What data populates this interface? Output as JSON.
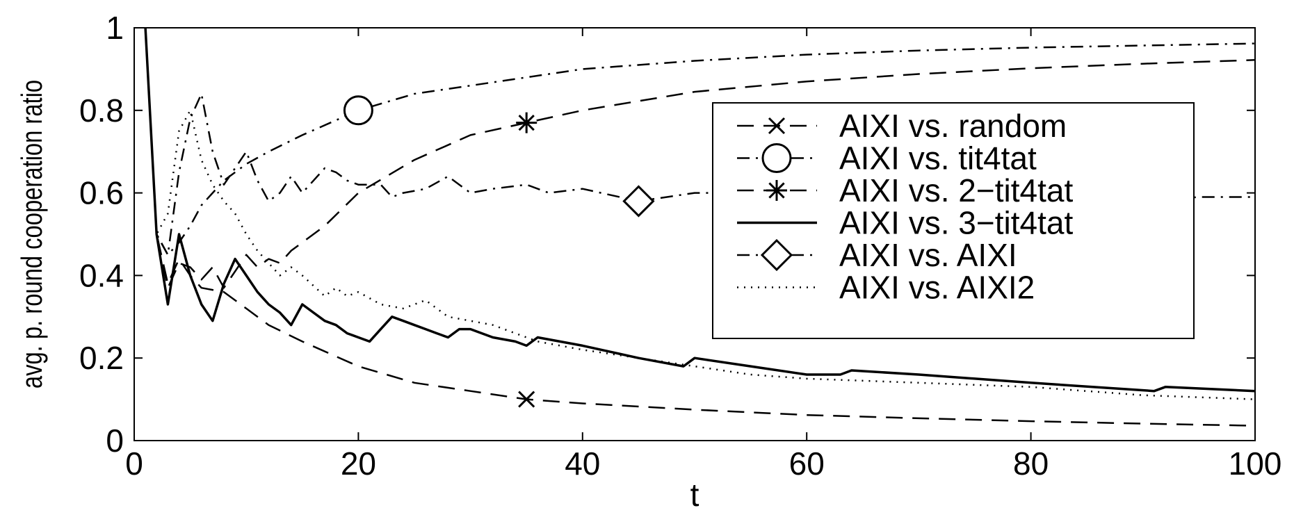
{
  "chart_data": {
    "type": "line",
    "title": "",
    "xlabel": "t",
    "ylabel": "avg. p. round cooperation ratio",
    "xlim": [
      0,
      100
    ],
    "ylim": [
      0,
      1
    ],
    "xticks": [
      0,
      20,
      40,
      60,
      80,
      100
    ],
    "yticks": [
      0,
      0.2,
      0.4,
      0.6,
      0.8,
      1
    ],
    "ytick_labels": [
      "0",
      "0.2",
      "0.4",
      "0.6",
      "0.8",
      "1"
    ],
    "grid": false,
    "legend_position": "right",
    "series": [
      {
        "name": "AIXI vs. random",
        "line_style": "dashed",
        "marker": "x",
        "marker_at": [
          35,
          0.1
        ],
        "x": [
          1,
          2,
          3,
          4,
          5,
          6,
          8,
          10,
          12,
          15,
          20,
          25,
          30,
          35,
          40,
          50,
          60,
          70,
          80,
          90,
          100
        ],
        "y": [
          1.0,
          0.5,
          0.38,
          0.44,
          0.4,
          0.37,
          0.36,
          0.32,
          0.28,
          0.24,
          0.18,
          0.14,
          0.12,
          0.1,
          0.09,
          0.075,
          0.062,
          0.054,
          0.047,
          0.041,
          0.036
        ]
      },
      {
        "name": "AIXI vs. tit4tat",
        "line_style": "dashdot",
        "marker": "circle",
        "marker_at": [
          20,
          0.8
        ],
        "x": [
          1,
          2,
          3,
          4,
          5,
          6,
          8,
          10,
          12,
          15,
          20,
          25,
          30,
          40,
          50,
          60,
          70,
          80,
          90,
          100
        ],
        "y": [
          1.0,
          0.5,
          0.45,
          0.48,
          0.52,
          0.57,
          0.63,
          0.67,
          0.7,
          0.74,
          0.8,
          0.84,
          0.86,
          0.9,
          0.92,
          0.935,
          0.945,
          0.952,
          0.957,
          0.962
        ]
      },
      {
        "name": "AIXI vs. 2−tit4tat",
        "line_style": "dashed",
        "marker": "asterisk",
        "marker_at": [
          35,
          0.77
        ],
        "x": [
          1,
          2,
          3,
          4,
          5,
          6,
          7,
          8,
          9,
          10,
          11,
          12,
          13,
          14,
          15,
          17,
          20,
          25,
          30,
          35,
          40,
          50,
          60,
          70,
          80,
          90,
          100
        ],
        "y": [
          1.0,
          0.5,
          0.37,
          0.43,
          0.42,
          0.39,
          0.42,
          0.37,
          0.41,
          0.45,
          0.42,
          0.44,
          0.43,
          0.46,
          0.48,
          0.52,
          0.6,
          0.68,
          0.74,
          0.77,
          0.8,
          0.845,
          0.87,
          0.888,
          0.902,
          0.913,
          0.922
        ]
      },
      {
        "name": "AIXI vs. 3−tit4tat",
        "line_style": "solid",
        "marker": "none",
        "x": [
          1,
          2,
          3,
          4,
          5,
          6,
          7,
          8,
          9,
          10,
          11,
          12,
          13,
          14,
          15,
          16,
          17,
          18,
          19,
          20,
          21,
          22,
          23,
          24,
          25,
          26,
          27,
          28,
          29,
          30,
          32,
          34,
          35,
          36,
          40,
          45,
          49,
          50,
          55,
          60,
          63,
          64,
          70,
          80,
          91,
          92,
          100
        ],
        "y": [
          1.0,
          0.5,
          0.33,
          0.5,
          0.4,
          0.33,
          0.29,
          0.38,
          0.44,
          0.4,
          0.36,
          0.33,
          0.31,
          0.28,
          0.33,
          0.31,
          0.29,
          0.28,
          0.26,
          0.25,
          0.24,
          0.27,
          0.3,
          0.29,
          0.28,
          0.27,
          0.26,
          0.25,
          0.27,
          0.27,
          0.25,
          0.24,
          0.23,
          0.25,
          0.23,
          0.2,
          0.18,
          0.2,
          0.18,
          0.16,
          0.16,
          0.17,
          0.16,
          0.14,
          0.12,
          0.13,
          0.12
        ]
      },
      {
        "name": "AIXI vs. AIXI",
        "line_style": "dashdot",
        "marker": "diamond",
        "marker_at": [
          45,
          0.58
        ],
        "x": [
          1,
          2,
          3,
          4,
          5,
          6,
          7,
          8,
          9,
          10,
          11,
          12,
          13,
          14,
          15,
          16,
          17,
          18,
          19,
          20,
          22,
          23,
          24,
          26,
          28,
          30,
          32,
          35,
          37,
          40,
          45,
          50,
          55,
          60,
          70,
          80,
          90,
          95,
          100
        ],
        "y": [
          1.0,
          0.5,
          0.45,
          0.65,
          0.78,
          0.84,
          0.7,
          0.62,
          0.66,
          0.7,
          0.63,
          0.58,
          0.6,
          0.64,
          0.6,
          0.63,
          0.66,
          0.65,
          0.63,
          0.62,
          0.62,
          0.59,
          0.6,
          0.61,
          0.64,
          0.6,
          0.61,
          0.62,
          0.6,
          0.61,
          0.58,
          0.6,
          0.6,
          0.6,
          0.6,
          0.6,
          0.58,
          0.59,
          0.59
        ]
      },
      {
        "name": "AIXI vs. AIXI2",
        "line_style": "dotted",
        "marker": "none",
        "x": [
          1,
          2,
          3,
          4,
          5,
          6,
          7,
          8,
          9,
          10,
          11,
          12,
          13,
          14,
          15,
          17,
          18,
          19,
          20,
          22,
          24,
          26,
          28,
          30,
          32,
          34,
          35,
          36,
          40,
          45,
          50,
          55,
          60,
          70,
          80,
          90,
          100
        ],
        "y": [
          1.0,
          0.5,
          0.55,
          0.75,
          0.8,
          0.68,
          0.62,
          0.58,
          0.55,
          0.5,
          0.46,
          0.43,
          0.4,
          0.42,
          0.4,
          0.35,
          0.37,
          0.35,
          0.36,
          0.33,
          0.32,
          0.34,
          0.3,
          0.29,
          0.28,
          0.26,
          0.25,
          0.24,
          0.22,
          0.2,
          0.18,
          0.16,
          0.15,
          0.14,
          0.13,
          0.11,
          0.1
        ]
      }
    ]
  }
}
